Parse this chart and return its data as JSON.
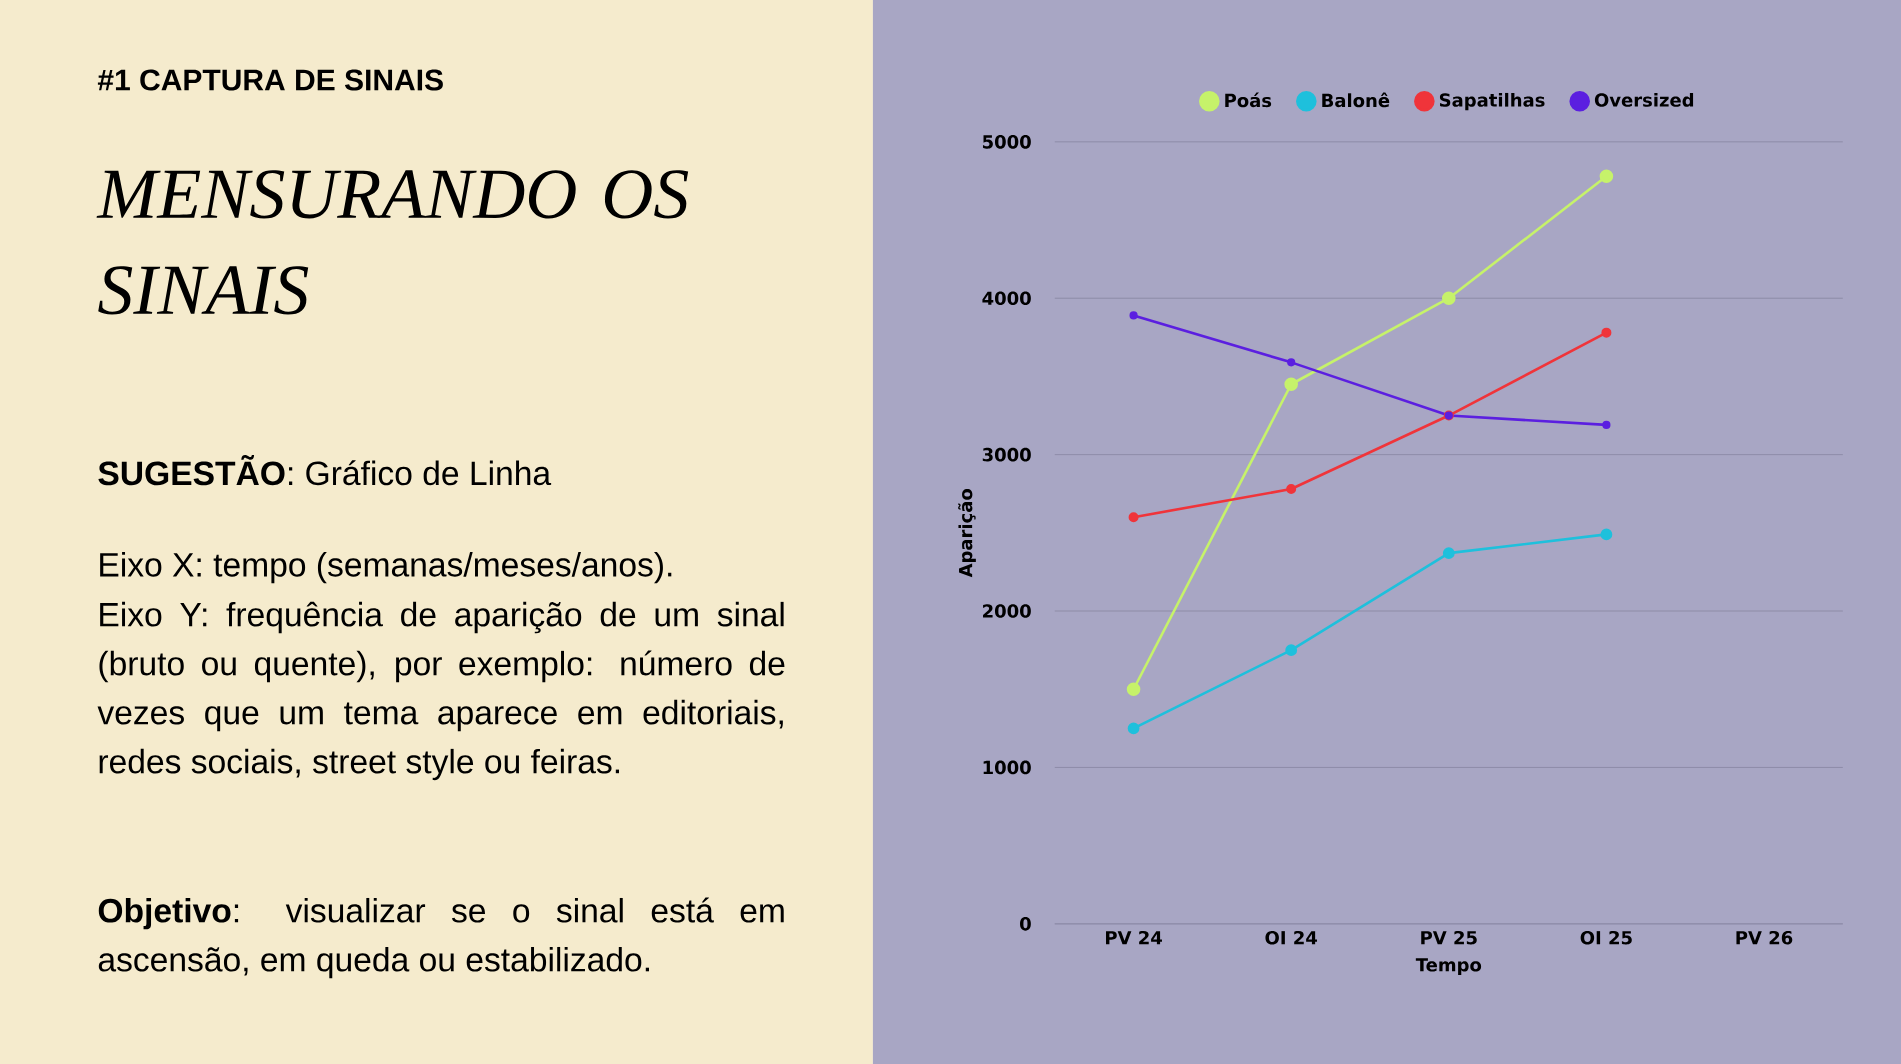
{
  "chart_data": {
    "type": "line",
    "subtitle": "#1 CAPTURA DE SINAIS",
    "title": "MENSURANDO OS SINAIS",
    "annotations": [
      "**SUGESTÃO**: Gráfico de Linha",
      "Eixo X: tempo (semanas/meses/anos).",
      "Eixo Y: frequência de aparição de um sinal (bruto ou quente), por exemplo: número de vezes que um tema aparece em editoriais, redes sociais, street style ou feiras.",
      "**Objetivo**: visualizar se o sinal está em ascensão, em queda ou estabilizado."
    ],
    "xlabel": "Tempo",
    "ylabel": "Aparição",
    "categories": [
      "PV 24",
      "OI 24",
      "PV 25",
      "OI 25",
      "PV 26"
    ],
    "series": [
      {
        "name": "Poás",
        "color": "#c6f26a",
        "values": [
          1500,
          3450,
          4000,
          4780,
          null
        ]
      },
      {
        "name": "Balonê",
        "color": "#1ec0dc",
        "values": [
          1250,
          1750,
          2370,
          2490,
          null
        ]
      },
      {
        "name": "Sapatilhas",
        "color": "#f0343a",
        "values": [
          2600,
          2780,
          3250,
          3780,
          null
        ]
      },
      {
        "name": "Oversized",
        "color": "#5b1fe0",
        "values": [
          3890,
          3590,
          3250,
          3190,
          null
        ]
      }
    ],
    "ylim": [
      0,
      5000
    ],
    "yticks": [
      0,
      1000,
      2000,
      3000,
      4000,
      5000
    ],
    "grid": "y",
    "legend": "top",
    "marker": "circle"
  }
}
